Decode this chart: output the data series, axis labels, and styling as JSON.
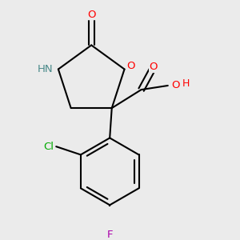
{
  "bg_color": "#ebebeb",
  "bond_color": "#000000",
  "bond_width": 1.5,
  "atom_colors": {
    "O": "#ff0000",
    "N": "#4a8a8a",
    "Cl": "#00aa00",
    "F": "#aa00aa",
    "C": "#000000",
    "H": "#ff0000"
  },
  "font_size": 9.5,
  "fig_size": [
    3.0,
    3.0
  ],
  "dpi": 100
}
